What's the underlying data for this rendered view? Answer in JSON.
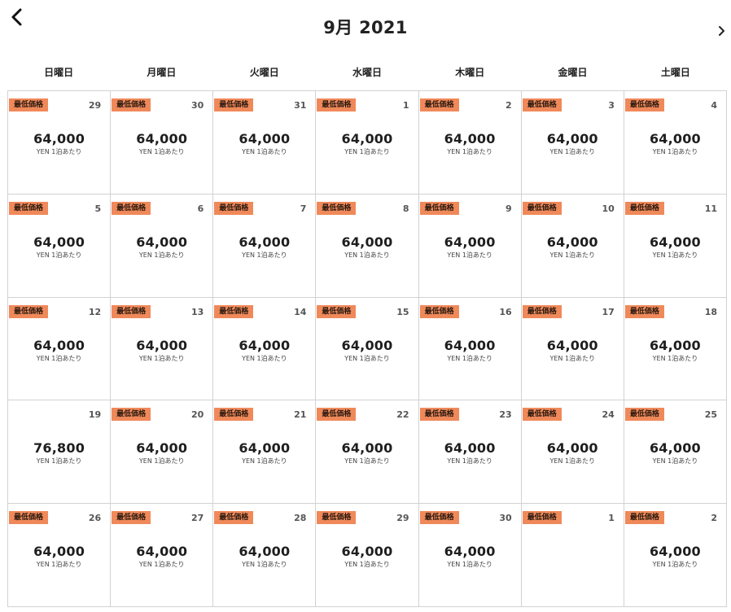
{
  "header": {
    "month_title": "9月 2021",
    "prev_icon": "chevron-left-icon",
    "next_icon": "chevron-right-icon"
  },
  "weekdays": [
    "日曜日",
    "月曜日",
    "火曜日",
    "水曜日",
    "木曜日",
    "金曜日",
    "土曜日"
  ],
  "lowest_price_label": "最低価格",
  "price_unit": "YEN 1泊あたり",
  "colors": {
    "badge": "#f0895a",
    "grid_line": "#d2d2d2"
  },
  "days": [
    {
      "day": "29",
      "price": "64,000",
      "lowest": true
    },
    {
      "day": "30",
      "price": "64,000",
      "lowest": true
    },
    {
      "day": "31",
      "price": "64,000",
      "lowest": true
    },
    {
      "day": "1",
      "price": "64,000",
      "lowest": true
    },
    {
      "day": "2",
      "price": "64,000",
      "lowest": true
    },
    {
      "day": "3",
      "price": "64,000",
      "lowest": true
    },
    {
      "day": "4",
      "price": "64,000",
      "lowest": true
    },
    {
      "day": "5",
      "price": "64,000",
      "lowest": true
    },
    {
      "day": "6",
      "price": "64,000",
      "lowest": true
    },
    {
      "day": "7",
      "price": "64,000",
      "lowest": true
    },
    {
      "day": "8",
      "price": "64,000",
      "lowest": true
    },
    {
      "day": "9",
      "price": "64,000",
      "lowest": true
    },
    {
      "day": "10",
      "price": "64,000",
      "lowest": true
    },
    {
      "day": "11",
      "price": "64,000",
      "lowest": true
    },
    {
      "day": "12",
      "price": "64,000",
      "lowest": true
    },
    {
      "day": "13",
      "price": "64,000",
      "lowest": true
    },
    {
      "day": "14",
      "price": "64,000",
      "lowest": true
    },
    {
      "day": "15",
      "price": "64,000",
      "lowest": true
    },
    {
      "day": "16",
      "price": "64,000",
      "lowest": true
    },
    {
      "day": "17",
      "price": "64,000",
      "lowest": true
    },
    {
      "day": "18",
      "price": "64,000",
      "lowest": true
    },
    {
      "day": "19",
      "price": "76,800",
      "lowest": false
    },
    {
      "day": "20",
      "price": "64,000",
      "lowest": true
    },
    {
      "day": "21",
      "price": "64,000",
      "lowest": true
    },
    {
      "day": "22",
      "price": "64,000",
      "lowest": true
    },
    {
      "day": "23",
      "price": "64,000",
      "lowest": true
    },
    {
      "day": "24",
      "price": "64,000",
      "lowest": true
    },
    {
      "day": "25",
      "price": "64,000",
      "lowest": true
    },
    {
      "day": "26",
      "price": "64,000",
      "lowest": true
    },
    {
      "day": "27",
      "price": "64,000",
      "lowest": true
    },
    {
      "day": "28",
      "price": "64,000",
      "lowest": true
    },
    {
      "day": "29",
      "price": "64,000",
      "lowest": true
    },
    {
      "day": "30",
      "price": "64,000",
      "lowest": true
    },
    {
      "day": "1",
      "price": "",
      "lowest": true
    },
    {
      "day": "2",
      "price": "64,000",
      "lowest": true
    }
  ]
}
